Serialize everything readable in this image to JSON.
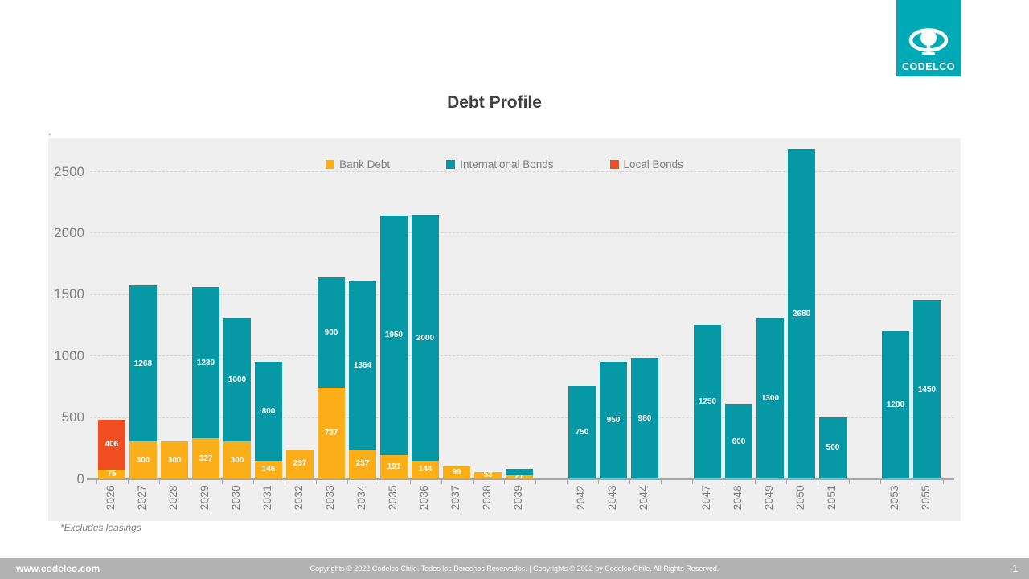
{
  "page": {
    "title": "Debt Profile",
    "footnote": "*Excludes leasings",
    "stray_mark": "'"
  },
  "logo": {
    "text": "CODELCO",
    "background_color": "#00A9B6"
  },
  "footer": {
    "website": "www.codelco.com",
    "copyright": "Copyrights © 2022 Codelco Chile. Todos los Derechos Reservados. | Copyrights © 2022 by Codelco Chile.  All Rights Reserved.",
    "page_number": "1"
  },
  "chart_data": {
    "type": "bar",
    "stacked": true,
    "title": "Debt Profile",
    "categories": [
      "2026",
      "2027",
      "2028",
      "2029",
      "2030",
      "2031",
      "2032",
      "2033",
      "2034",
      "2035",
      "2036",
      "2037",
      "2038",
      "2039",
      "",
      "2042",
      "2043",
      "2044",
      "",
      "2047",
      "2048",
      "2049",
      "2050",
      "2051",
      "",
      "2053",
      "2055"
    ],
    "series": [
      {
        "name": "Bank Debt",
        "color": "#FBAE17",
        "values": [
          75,
          300,
          300,
          327,
          300,
          146,
          237,
          737,
          237,
          191,
          144,
          99,
          53,
          27,
          0,
          0,
          0,
          0,
          0,
          0,
          0,
          0,
          0,
          0,
          0,
          0,
          0
        ]
      },
      {
        "name": "International Bonds",
        "color": "#0798A6",
        "values": [
          0,
          1268,
          0,
          1230,
          1000,
          800,
          0,
          900,
          1364,
          1950,
          2000,
          0,
          0,
          50,
          0,
          750,
          950,
          980,
          0,
          1250,
          600,
          1300,
          2680,
          500,
          0,
          1200,
          1450
        ]
      },
      {
        "name": "Local Bonds",
        "color": "#F04E22",
        "values": [
          406,
          0,
          0,
          0,
          0,
          0,
          0,
          0,
          0,
          0,
          0,
          0,
          0,
          0,
          0,
          0,
          0,
          0,
          0,
          0,
          0,
          0,
          0,
          0,
          0,
          0,
          0
        ]
      }
    ],
    "no_label": [
      {
        "series": "International Bonds",
        "index": 13,
        "note": "2039 teal segment shown without data label; value estimated from pixel height"
      }
    ],
    "xlabel": "",
    "ylabel": "",
    "ylim": [
      0,
      2768
    ],
    "yticks": [
      0,
      500,
      1000,
      1500,
      2000,
      2500
    ],
    "grid": "dashed horizontal",
    "legend_position": "top-center",
    "plot_background": "#efefef"
  }
}
